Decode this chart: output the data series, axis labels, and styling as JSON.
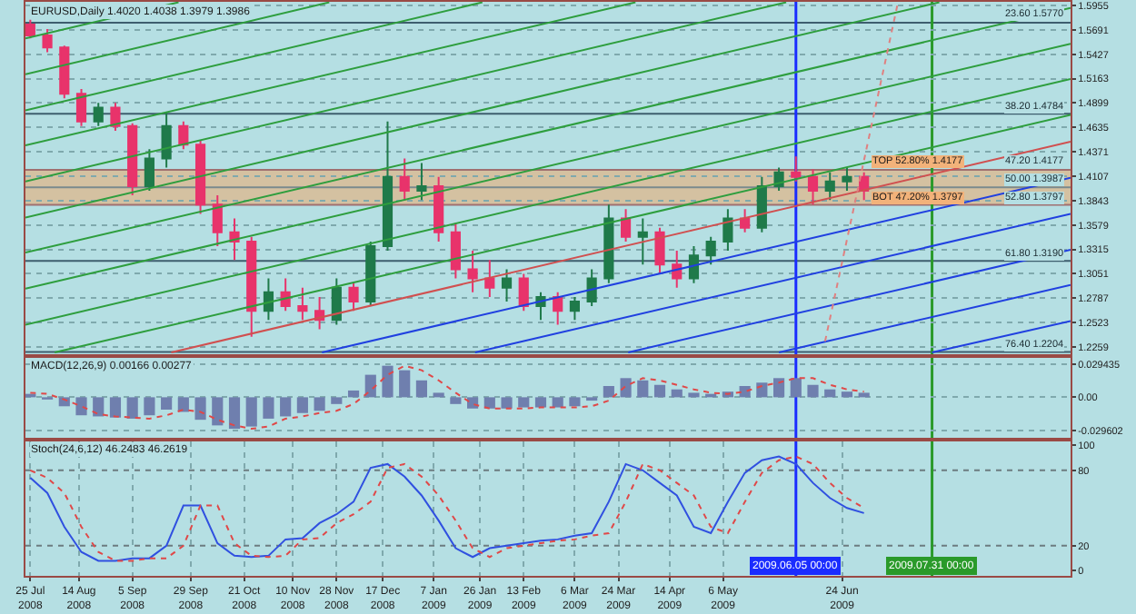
{
  "chart_data": [
    {
      "type": "candlestick",
      "title": "EURUSD,Daily 1.4020 1.4038 1.3979 1.3986",
      "x": [
        "2008-07-25",
        "2008-08-01",
        "2008-08-08",
        "2008-08-15",
        "2008-08-22",
        "2008-08-29",
        "2008-09-05",
        "2008-09-12",
        "2008-09-19",
        "2008-09-26",
        "2008-10-03",
        "2008-10-10",
        "2008-10-17",
        "2008-10-24",
        "2008-10-31",
        "2008-11-07",
        "2008-11-14",
        "2008-11-21",
        "2008-11-28",
        "2008-12-05",
        "2008-12-12",
        "2008-12-19",
        "2008-12-26",
        "2009-01-02",
        "2009-01-09",
        "2009-01-16",
        "2009-01-23",
        "2009-01-30",
        "2009-02-06",
        "2009-02-13",
        "2009-02-20",
        "2009-02-27",
        "2009-03-06",
        "2009-03-13",
        "2009-03-20",
        "2009-03-27",
        "2009-04-03",
        "2009-04-10",
        "2009-04-17",
        "2009-04-24",
        "2009-05-01",
        "2009-05-08",
        "2009-05-15",
        "2009-05-22",
        "2009-05-29",
        "2009-06-05",
        "2009-06-12",
        "2009-06-19",
        "2009-06-26",
        "2009-07-03"
      ],
      "ohlc": [
        [
          1.575,
          1.58,
          1.56,
          1.563
        ],
        [
          1.563,
          1.57,
          1.545,
          1.55
        ],
        [
          1.55,
          1.552,
          1.495,
          1.5
        ],
        [
          1.5,
          1.505,
          1.465,
          1.47
        ],
        [
          1.47,
          1.49,
          1.465,
          1.485
        ],
        [
          1.485,
          1.49,
          1.46,
          1.465
        ],
        [
          1.465,
          1.468,
          1.39,
          1.4
        ],
        [
          1.4,
          1.44,
          1.395,
          1.43
        ],
        [
          1.43,
          1.48,
          1.42,
          1.465
        ],
        [
          1.465,
          1.47,
          1.44,
          1.445
        ],
        [
          1.445,
          1.45,
          1.37,
          1.38
        ],
        [
          1.38,
          1.39,
          1.335,
          1.35
        ],
        [
          1.35,
          1.365,
          1.32,
          1.34
        ],
        [
          1.34,
          1.345,
          1.237,
          1.265
        ],
        [
          1.265,
          1.3,
          1.255,
          1.285
        ],
        [
          1.285,
          1.3,
          1.265,
          1.27
        ],
        [
          1.27,
          1.29,
          1.255,
          1.265
        ],
        [
          1.265,
          1.28,
          1.245,
          1.255
        ],
        [
          1.255,
          1.3,
          1.25,
          1.29
        ],
        [
          1.29,
          1.295,
          1.265,
          1.275
        ],
        [
          1.275,
          1.34,
          1.27,
          1.335
        ],
        [
          1.335,
          1.47,
          1.33,
          1.41
        ],
        [
          1.41,
          1.43,
          1.385,
          1.395
        ],
        [
          1.395,
          1.425,
          1.385,
          1.4
        ],
        [
          1.4,
          1.41,
          1.34,
          1.35
        ],
        [
          1.35,
          1.36,
          1.3,
          1.31
        ],
        [
          1.31,
          1.33,
          1.285,
          1.3
        ],
        [
          1.3,
          1.32,
          1.28,
          1.29
        ],
        [
          1.29,
          1.31,
          1.275,
          1.3
        ],
        [
          1.3,
          1.305,
          1.265,
          1.27
        ],
        [
          1.27,
          1.285,
          1.255,
          1.28
        ],
        [
          1.28,
          1.285,
          1.25,
          1.265
        ],
        [
          1.265,
          1.28,
          1.255,
          1.275
        ],
        [
          1.275,
          1.31,
          1.27,
          1.3
        ],
        [
          1.3,
          1.38,
          1.295,
          1.365
        ],
        [
          1.365,
          1.375,
          1.34,
          1.345
        ],
        [
          1.345,
          1.365,
          1.315,
          1.35
        ],
        [
          1.35,
          1.355,
          1.305,
          1.315
        ],
        [
          1.315,
          1.33,
          1.29,
          1.3
        ],
        [
          1.3,
          1.335,
          1.295,
          1.325
        ],
        [
          1.325,
          1.345,
          1.315,
          1.34
        ],
        [
          1.34,
          1.375,
          1.33,
          1.365
        ],
        [
          1.365,
          1.375,
          1.35,
          1.355
        ],
        [
          1.355,
          1.41,
          1.35,
          1.4
        ],
        [
          1.4,
          1.42,
          1.395,
          1.415
        ],
        [
          1.415,
          1.432,
          1.405,
          1.41
        ],
        [
          1.41,
          1.418,
          1.38,
          1.395
        ],
        [
          1.395,
          1.415,
          1.385,
          1.405
        ],
        [
          1.405,
          1.42,
          1.395,
          1.41
        ],
        [
          1.41,
          1.415,
          1.385,
          1.395
        ]
      ],
      "series": [
        {
          "type": "line",
          "color": "#2e9e3e",
          "x": [
            "2008-07-23",
            "2008-09-24"
          ],
          "values": [
            1.56,
            1.599
          ]
        },
        {
          "type": "line",
          "color": "#2e9e3e",
          "x": [
            "2008-07-23",
            "2008-11-25"
          ],
          "values": [
            1.521,
            1.599
          ]
        },
        {
          "type": "line",
          "color": "#2e9e3e",
          "x": [
            "2008-07-23",
            "2009-01-27"
          ],
          "values": [
            1.482,
            1.599
          ]
        },
        {
          "type": "line",
          "color": "#2e9e3e",
          "x": [
            "2008-07-23",
            "2009-03-31"
          ],
          "values": [
            1.444,
            1.599
          ]
        },
        {
          "type": "line",
          "color": "#2e9e3e",
          "x": [
            "2008-07-23",
            "2009-06-01"
          ],
          "values": [
            1.405,
            1.599
          ]
        },
        {
          "type": "line",
          "color": "#2e9e3e",
          "x": [
            "2008-07-23",
            "2009-08-03"
          ],
          "values": [
            1.366,
            1.599
          ]
        },
        {
          "type": "line",
          "color": "#2e9e3e",
          "x": [
            "2008-07-23",
            "2009-09-26"
          ],
          "values": [
            1.328,
            1.593
          ]
        },
        {
          "type": "line",
          "color": "#2e9e3e",
          "x": [
            "2008-07-23",
            "2009-09-26"
          ],
          "values": [
            1.289,
            1.554
          ]
        },
        {
          "type": "line",
          "color": "#2e9e3e",
          "x": [
            "2008-07-23",
            "2009-09-26"
          ],
          "values": [
            1.25,
            1.516
          ]
        },
        {
          "type": "line",
          "color": "#2e9e3e",
          "x": [
            "2008-08-04",
            "2009-09-26"
          ],
          "values": [
            1.22,
            1.477
          ]
        },
        {
          "type": "line",
          "color": "#d05050",
          "x": [
            "2008-09-21",
            "2009-09-26"
          ],
          "values": [
            1.22,
            1.448
          ]
        },
        {
          "type": "line",
          "color": "#2040e0",
          "x": [
            "2008-11-22",
            "2009-09-26"
          ],
          "values": [
            1.22,
            1.409
          ]
        },
        {
          "type": "line",
          "color": "#2040e0",
          "x": [
            "2009-01-24",
            "2009-09-26"
          ],
          "values": [
            1.22,
            1.37
          ]
        },
        {
          "type": "line",
          "color": "#2040e0",
          "x": [
            "2009-03-28",
            "2009-09-26"
          ],
          "values": [
            1.22,
            1.331
          ]
        },
        {
          "type": "line",
          "color": "#2040e0",
          "x": [
            "2009-05-29",
            "2009-09-26"
          ],
          "values": [
            1.22,
            1.293
          ]
        },
        {
          "type": "line",
          "color": "#2040e0",
          "x": [
            "2009-07-31",
            "2009-09-26"
          ],
          "values": [
            1.22,
            1.254
          ]
        },
        {
          "type": "line",
          "color": "#e08080",
          "line_style": "dotted",
          "x": [
            "2009-06-17",
            "2009-07-17"
          ],
          "values": [
            1.232,
            1.599
          ]
        }
      ],
      "xlim": [
        "2008-07-23",
        "2009-09-26"
      ],
      "ylim": [
        1.218,
        1.5995
      ],
      "yticks": [
        1.2259,
        1.2523,
        1.2787,
        1.3051,
        1.3315,
        1.3579,
        1.3843,
        1.4107,
        1.4371,
        1.4635,
        1.4899,
        1.5163,
        1.5427,
        1.5691,
        1.5955
      ],
      "ref_lines": [
        {
          "axis": "y",
          "value": 1.577,
          "label": "23.60 1.5770",
          "color": "#3e5e6e"
        },
        {
          "axis": "y",
          "value": 1.4784,
          "label": "38.20 1.4784",
          "color": "#3e5e6e"
        },
        {
          "axis": "y",
          "value": 1.4177,
          "label": "47.20 1.4177",
          "color": "#a07070"
        },
        {
          "axis": "y",
          "value": 1.3987,
          "label": "50.00 1.3987",
          "color": "#7a8a8e"
        },
        {
          "axis": "y",
          "value": 1.3797,
          "label": "52.80 1.3797",
          "color": "#a07070"
        },
        {
          "axis": "y",
          "value": 1.319,
          "label": "61.80 1.3190",
          "color": "#3e5e6e"
        },
        {
          "axis": "y",
          "value": 1.2204,
          "label": "76.40 1.2204",
          "color": "#3e5e6e"
        },
        {
          "axis": "x",
          "value": "2009-06-05",
          "color": "#1a2cff"
        },
        {
          "axis": "x",
          "value": "2009-07-31",
          "color": "#2a9a2a"
        }
      ],
      "bands": [
        {
          "axis": "y",
          "from": 1.3797,
          "to": 1.4177,
          "color": "#f4a460"
        }
      ],
      "annotations": [
        {
          "text": "TOP 52.80% 1.4177",
          "x": "2009-07-06",
          "y": 1.4177
        },
        {
          "text": "BOT 47.20% 1.3797",
          "x": "2009-07-06",
          "y": 1.3797
        }
      ],
      "grid": true,
      "tick_labels": "y"
    },
    {
      "type": "bar",
      "title": "MACD(12,26,9) 0.00166 0.00277",
      "x": [
        "2008-07-25",
        "2008-08-01",
        "2008-08-08",
        "2008-08-15",
        "2008-08-22",
        "2008-08-29",
        "2008-09-05",
        "2008-09-12",
        "2008-09-19",
        "2008-09-26",
        "2008-10-03",
        "2008-10-10",
        "2008-10-17",
        "2008-10-24",
        "2008-10-31",
        "2008-11-07",
        "2008-11-14",
        "2008-11-21",
        "2008-11-28",
        "2008-12-05",
        "2008-12-12",
        "2008-12-19",
        "2008-12-26",
        "2009-01-02",
        "2009-01-09",
        "2009-01-16",
        "2009-01-23",
        "2009-01-30",
        "2009-02-06",
        "2009-02-13",
        "2009-02-20",
        "2009-02-27",
        "2009-03-06",
        "2009-03-13",
        "2009-03-20",
        "2009-03-27",
        "2009-04-03",
        "2009-04-10",
        "2009-04-17",
        "2009-04-24",
        "2009-05-01",
        "2009-05-08",
        "2009-05-15",
        "2009-05-22",
        "2009-05-29",
        "2009-06-05",
        "2009-06-12",
        "2009-06-19",
        "2009-06-26",
        "2009-07-03"
      ],
      "series": [
        {
          "type": "bar",
          "color": "#6f7fae",
          "values": [
            0.003,
            -0.002,
            -0.008,
            -0.016,
            -0.017,
            -0.018,
            -0.019,
            -0.016,
            -0.011,
            -0.013,
            -0.02,
            -0.025,
            -0.028,
            -0.026,
            -0.019,
            -0.017,
            -0.014,
            -0.012,
            -0.006,
            0.006,
            0.02,
            0.028,
            0.024,
            0.015,
            0.004,
            -0.006,
            -0.01,
            -0.01,
            -0.01,
            -0.009,
            -0.009,
            -0.009,
            -0.008,
            -0.003,
            0.01,
            0.017,
            0.015,
            0.011,
            0.007,
            0.004,
            0.003,
            0.005,
            0.01,
            0.013,
            0.017,
            0.017,
            0.011,
            0.007,
            0.005,
            0.004
          ]
        },
        {
          "type": "line",
          "color": "#e04848",
          "line_style": "dotted",
          "values": [
            0.004,
            0.003,
            -0.002,
            -0.008,
            -0.015,
            -0.017,
            -0.018,
            -0.019,
            -0.016,
            -0.011,
            -0.013,
            -0.02,
            -0.025,
            -0.028,
            -0.026,
            -0.019,
            -0.017,
            -0.014,
            -0.012,
            -0.006,
            0.006,
            0.02,
            0.028,
            0.024,
            0.015,
            0.004,
            -0.006,
            -0.01,
            -0.01,
            -0.01,
            -0.009,
            -0.009,
            -0.009,
            -0.008,
            -0.003,
            0.01,
            0.017,
            0.015,
            0.011,
            0.007,
            0.004,
            0.003,
            0.005,
            0.01,
            0.013,
            0.017,
            0.017,
            0.011,
            0.007,
            0.005
          ]
        }
      ],
      "xlim": [
        "2008-07-23",
        "2009-09-26"
      ],
      "ylim": [
        -0.036,
        0.035
      ],
      "yticks": [
        {
          "value": 0.029435,
          "label": "0.029435"
        },
        {
          "value": 0,
          "label": "0.00"
        },
        {
          "value": -0.029602,
          "label": "-0.029602"
        }
      ],
      "ref_lines": [
        {
          "axis": "x",
          "value": "2009-06-05",
          "color": "#1a2cff"
        },
        {
          "axis": "x",
          "value": "2009-07-31",
          "color": "#2a9a2a"
        }
      ],
      "grid": "y",
      "tick_labels": "y"
    },
    {
      "type": "line",
      "title": "Stoch(24,6,12) 46.2483 46.2619",
      "x": [
        "2008-07-25",
        "2008-08-01",
        "2008-08-08",
        "2008-08-15",
        "2008-08-22",
        "2008-08-29",
        "2008-09-05",
        "2008-09-12",
        "2008-09-19",
        "2008-09-26",
        "2008-10-03",
        "2008-10-10",
        "2008-10-17",
        "2008-10-24",
        "2008-10-31",
        "2008-11-07",
        "2008-11-14",
        "2008-11-21",
        "2008-11-28",
        "2008-12-05",
        "2008-12-12",
        "2008-12-19",
        "2008-12-26",
        "2009-01-02",
        "2009-01-09",
        "2009-01-16",
        "2009-01-23",
        "2009-01-30",
        "2009-02-06",
        "2009-02-13",
        "2009-02-20",
        "2009-02-27",
        "2009-03-06",
        "2009-03-13",
        "2009-03-20",
        "2009-03-27",
        "2009-04-03",
        "2009-04-10",
        "2009-04-17",
        "2009-04-24",
        "2009-05-01",
        "2009-05-08",
        "2009-05-15",
        "2009-05-22",
        "2009-05-29",
        "2009-06-05",
        "2009-06-12",
        "2009-06-19",
        "2009-06-26",
        "2009-07-03"
      ],
      "series": [
        {
          "color": "#3050e0",
          "values": [
            74,
            62,
            35,
            15,
            8,
            8,
            10,
            10,
            20,
            52,
            52,
            22,
            12,
            11,
            12,
            25,
            26,
            38,
            45,
            55,
            82,
            85,
            75,
            60,
            40,
            18,
            11,
            18,
            20,
            22,
            24,
            25,
            28,
            30,
            55,
            85,
            80,
            70,
            60,
            35,
            30,
            55,
            78,
            88,
            91,
            85,
            70,
            58,
            50,
            46
          ]
        },
        {
          "color": "#e04848",
          "line_style": "dotted",
          "values": [
            80,
            74,
            62,
            35,
            15,
            8,
            8,
            10,
            10,
            20,
            52,
            52,
            22,
            12,
            11,
            12,
            25,
            26,
            38,
            45,
            55,
            82,
            85,
            75,
            60,
            40,
            18,
            11,
            18,
            20,
            22,
            24,
            25,
            28,
            30,
            55,
            85,
            80,
            70,
            60,
            35,
            30,
            55,
            78,
            88,
            91,
            85,
            70,
            58,
            50
          ]
        }
      ],
      "xlim": [
        "2008-07-23",
        "2009-09-26"
      ],
      "xticks": [
        {
          "value": "2008-07-25",
          "label": "25 Jul 2008"
        },
        {
          "value": "2008-08-14",
          "label": "14 Aug 2008"
        },
        {
          "value": "2008-09-05",
          "label": "5 Sep 2008"
        },
        {
          "value": "2008-09-29",
          "label": "29 Sep 2008"
        },
        {
          "value": "2008-10-21",
          "label": "21 Oct 2008"
        },
        {
          "value": "2008-11-10",
          "label": "10 Nov 2008"
        },
        {
          "value": "2008-11-28",
          "label": "28 Nov 2008"
        },
        {
          "value": "2008-12-17",
          "label": "17 Dec 2008"
        },
        {
          "value": "2009-01-07",
          "label": "7 Jan 2009"
        },
        {
          "value": "2009-01-26",
          "label": "26 Jan 2009"
        },
        {
          "value": "2009-02-13",
          "label": "13 Feb 2009"
        },
        {
          "value": "2009-03-06",
          "label": "6 Mar 2009"
        },
        {
          "value": "2009-03-24",
          "label": "24 Mar 2009"
        },
        {
          "value": "2009-04-14",
          "label": "14 Apr 2009"
        },
        {
          "value": "2009-05-06",
          "label": "6 May 2009"
        },
        {
          "value": "2009-06-24",
          "label": "24 Jun 2009"
        }
      ],
      "ylim": [
        -4,
        103
      ],
      "yticks": [
        0,
        20,
        80,
        100
      ],
      "ref_lines": [
        {
          "axis": "y",
          "value": 80,
          "color": "#6c7c80",
          "line_style": "dotted"
        },
        {
          "axis": "y",
          "value": 20,
          "color": "#6c7c80",
          "line_style": "dotted"
        },
        {
          "axis": "x",
          "value": "2009-06-05",
          "label": "2009.06.05 00:00",
          "color": "#1a2cff"
        },
        {
          "axis": "x",
          "value": "2009-07-31",
          "label": "2009.07.31 00:00",
          "color": "#2a9a2a"
        }
      ],
      "grid": "x"
    }
  ]
}
